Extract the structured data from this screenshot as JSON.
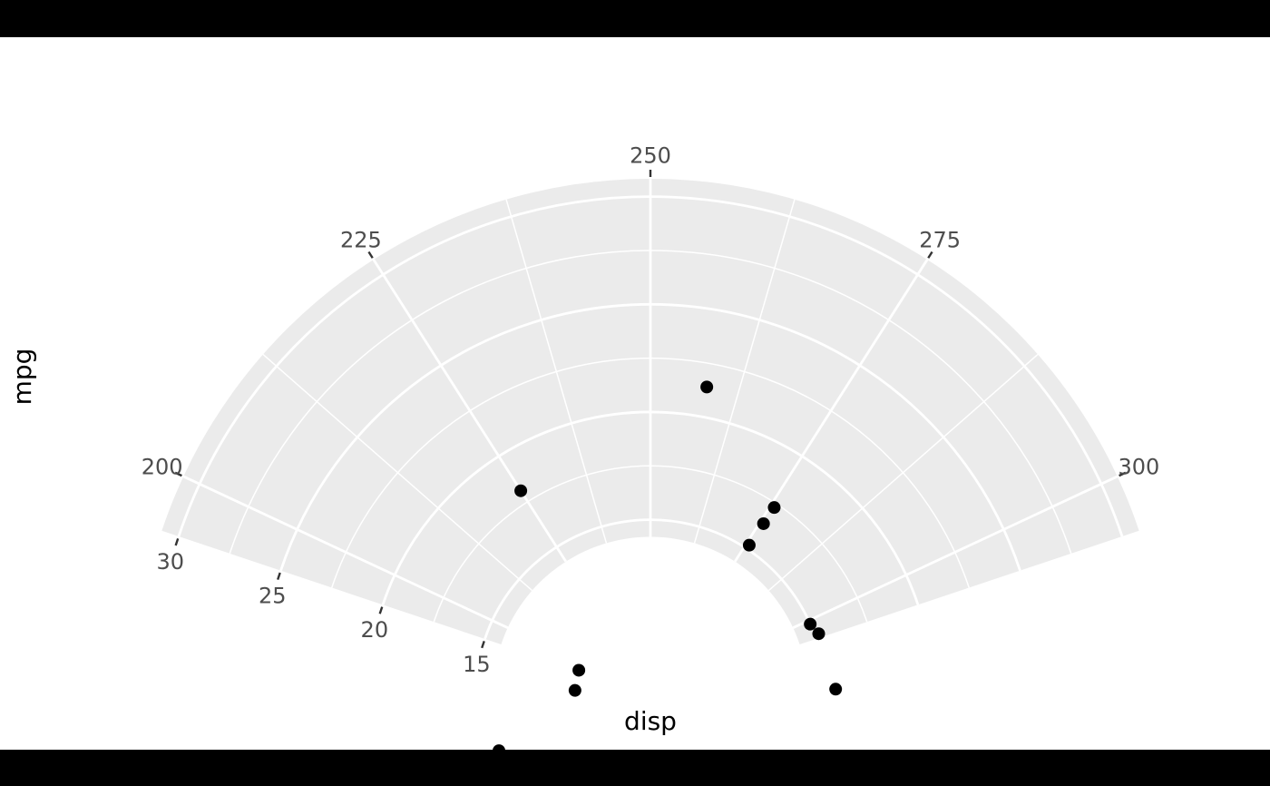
{
  "chart_data": {
    "type": "scatter",
    "coordinate_system": "polar-sector (radial coordinates, theta = x, r = y)",
    "title": "",
    "xlabel": "disp",
    "ylabel": "mpg",
    "grid": true,
    "legend": "none",
    "theta_axis": {
      "field": "disp",
      "tick_labels": [
        "200",
        "225",
        "250",
        "275",
        "300"
      ],
      "major_breaks": [
        200,
        225,
        250,
        275,
        300
      ],
      "minor_breaks": [
        212.5,
        237.5,
        262.5,
        287.5
      ],
      "limits": [
        195,
        305
      ]
    },
    "r_axis": {
      "field": "mpg",
      "tick_labels": [
        "15",
        "20",
        "25",
        "30"
      ],
      "major_breaks": [
        15,
        20,
        25,
        30
      ],
      "minor_breaks": [
        17.5,
        22.5,
        27.5
      ],
      "limits": [
        14.25,
        30.75
      ]
    },
    "points": [
      {
        "disp": 258,
        "mpg": 21.4
      },
      {
        "disp": 225,
        "mpg": 18.1
      },
      {
        "disp": 275.8,
        "mpg": 17.3
      },
      {
        "disp": 275.8,
        "mpg": 16.4
      },
      {
        "disp": 275.8,
        "mpg": 15.2
      },
      {
        "disp": 301,
        "mpg": 15.0
      },
      {
        "disp": 304,
        "mpg": 15.2
      },
      {
        "disp": 318,
        "mpg": 15.5
      },
      {
        "disp": 472,
        "mpg": 10.4
      },
      {
        "disp": 460,
        "mpg": 10.4
      },
      {
        "disp": 442,
        "mpg": 14.4
      }
    ],
    "colors": {
      "panel_fill": "#EBEBEB",
      "gridline": "#FFFFFF",
      "point": "#000000",
      "tick_mark": "#333333",
      "tick_text": "#4D4D4D",
      "axis_title_text": "#000000",
      "plot_background": "#FFFFFF",
      "letterbox": "#000000"
    }
  }
}
